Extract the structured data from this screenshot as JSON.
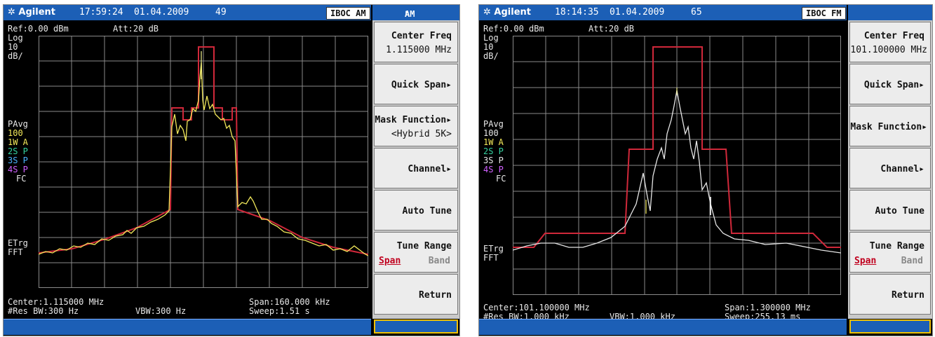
{
  "panels": [
    {
      "id": "am",
      "header": {
        "logo": "Agilent",
        "time": "17:59:24",
        "date": "01.04.2009",
        "count": "49",
        "mode_badge": "IBOC AM",
        "mode_label": "AM"
      },
      "screen": {
        "ref": "Ref:0.00 dBm",
        "att": "Att:20 dB",
        "scale": [
          "Log",
          "10",
          "dB/"
        ],
        "avg": [
          "PAvg",
          "100"
        ],
        "traces": [
          {
            "label": "1W A",
            "color": "#f2e85a"
          },
          {
            "label": "2S P",
            "color": "#34d3a0"
          },
          {
            "label": "3S P",
            "color": "#4bb3ff"
          },
          {
            "label": "4S P",
            "color": "#d060ff"
          }
        ],
        "fc": "FC",
        "trig": [
          "ETrg",
          "FFT"
        ],
        "center": "Center:1.115000 MHz",
        "span": "Span:160.000 kHz",
        "res_bw": "#Res BW:300 Hz",
        "vbw": "VBW:300 Hz",
        "sweep": "Sweep:1.51 s"
      },
      "softkeys": [
        {
          "line1": "Center Freq",
          "line2": "1.115000 MHz"
        },
        {
          "line1": "Quick Span▸",
          "line2": ""
        },
        {
          "line1": "Mask Function▸",
          "line2": "<Hybrid 5K>"
        },
        {
          "line1": "Channel▸",
          "line2": ""
        },
        {
          "line1": "Auto Tune",
          "line2": ""
        },
        {
          "line1": "Tune Range",
          "span": "Span",
          "band": "Band"
        },
        {
          "line1": "Return",
          "line2": ""
        }
      ],
      "colors": {
        "mask": "#d0283a",
        "trace": "#f2e85a",
        "grid": "#8a8a8a"
      }
    },
    {
      "id": "fm",
      "header": {
        "logo": "Agilent",
        "time": "18:14:35",
        "date": "01.04.2009",
        "count": "65",
        "mode_badge": "IBOC FM",
        "mode_label": ""
      },
      "screen": {
        "ref": "Ref:0.00 dBm",
        "att": "Att:20 dB",
        "scale": [
          "Log",
          "10",
          "dB/"
        ],
        "avg": [
          "PAvg",
          "100"
        ],
        "traces": [
          {
            "label": "1W A",
            "color": "#f2e85a"
          },
          {
            "label": "2S P",
            "color": "#34d3a0"
          },
          {
            "label": "3S P",
            "color": "#e8e8e8"
          },
          {
            "label": "4S P",
            "color": "#d060ff"
          }
        ],
        "fc": "FC",
        "trig": [
          "ETrg",
          "FFT"
        ],
        "center": "Center:101.100000 MHz",
        "span": "Span:1.300000 MHz",
        "res_bw": "#Res BW:1.000 kHz",
        "vbw": "VBW:1.000 kHz",
        "sweep": "Sweep:255.13 ms"
      },
      "softkeys": [
        {
          "line1": "Center Freq",
          "line2": "101.100000 MHz"
        },
        {
          "line1": "Quick Span▸",
          "line2": ""
        },
        {
          "line1": "Mask Function▸",
          "line2": ""
        },
        {
          "line1": "Channel▸",
          "line2": ""
        },
        {
          "line1": "Auto Tune",
          "line2": ""
        },
        {
          "line1": "Tune Range",
          "span": "Span",
          "band": "Band"
        },
        {
          "line1": "Return",
          "line2": ""
        }
      ],
      "colors": {
        "mask": "#d0283a",
        "trace": "#e6e6e6",
        "grid": "#8a8a8a"
      }
    }
  ]
}
